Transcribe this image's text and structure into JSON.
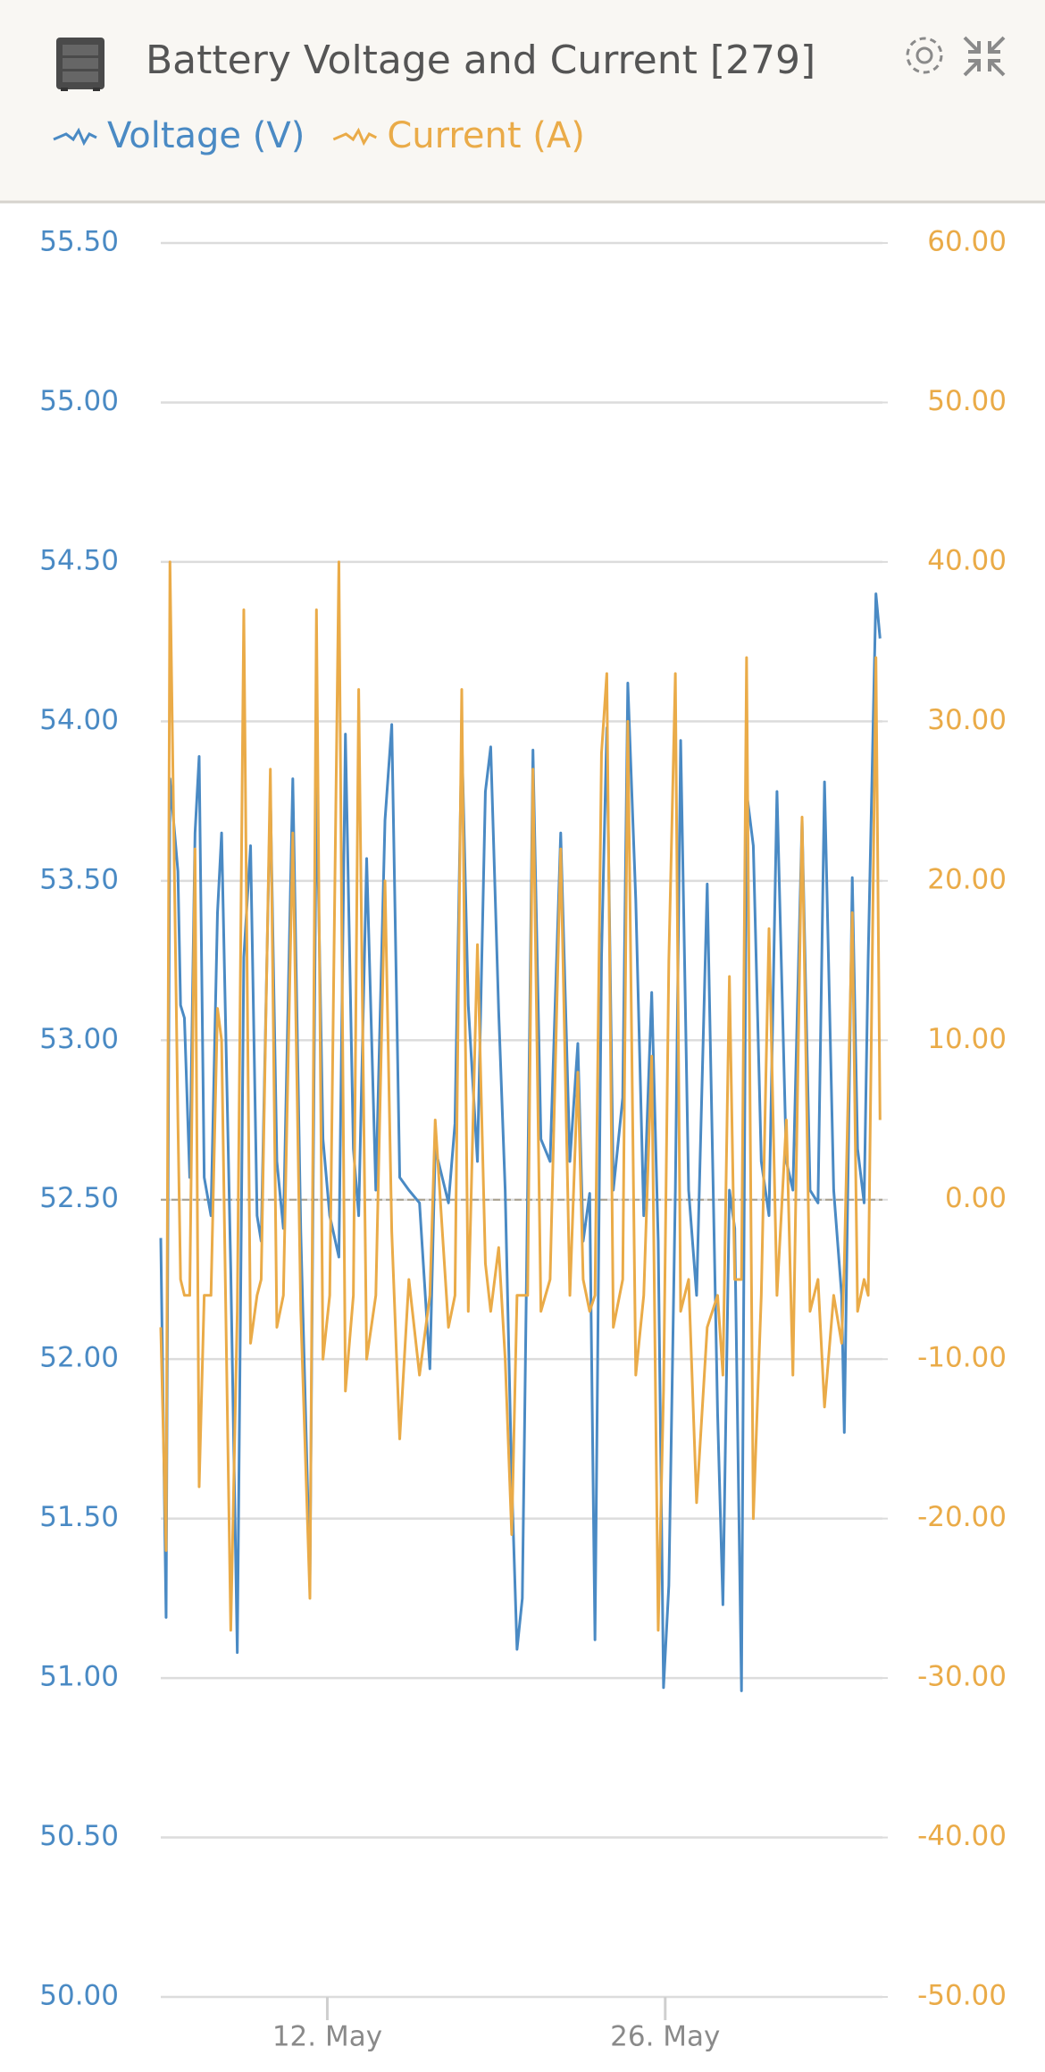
{
  "chart_data": {
    "type": "line",
    "title": "Battery Voltage and Current [279]",
    "x": [
      5.1,
      5.32,
      5.48,
      5.81,
      5.92,
      6.08,
      6.3,
      6.52,
      6.69,
      6.9,
      7.18,
      7.45,
      7.62,
      8.0,
      8.27,
      8.54,
      8.82,
      9.09,
      9.26,
      9.64,
      9.91,
      10.18,
      10.57,
      10.9,
      11.28,
      11.55,
      11.82,
      12.1,
      12.48,
      12.75,
      13.08,
      13.3,
      13.63,
      14.01,
      14.39,
      14.67,
      15.0,
      15.38,
      15.82,
      16.25,
      16.47,
      17.02,
      17.29,
      17.57,
      17.84,
      18.22,
      18.55,
      18.77,
      19.1,
      19.37,
      19.64,
      19.86,
      20.08,
      20.3,
      20.52,
      20.85,
      21.23,
      21.67,
      22.05,
      22.38,
      22.6,
      22.87,
      23.09,
      23.36,
      23.58,
      23.85,
      24.24,
      24.45,
      24.78,
      25.11,
      25.44,
      25.71,
      25.93,
      26.15,
      26.42,
      26.64,
      26.97,
      27.3,
      27.74,
      28.17,
      28.39,
      28.66,
      28.88,
      29.16,
      29.37,
      29.65,
      29.98,
      30.3,
      30.63,
      31.02,
      31.29,
      31.67,
      32.0,
      32.33,
      32.6,
      32.98,
      33.31,
      33.42,
      33.75,
      33.97,
      34.24,
      34.41,
      34.73,
      34.9
    ],
    "series": [
      {
        "name": "Voltage (V)",
        "color": "#4a8ac4",
        "axis": "y",
        "values": [
          52.38,
          51.19,
          53.82,
          53.53,
          53.11,
          53.07,
          52.57,
          53.65,
          53.89,
          52.57,
          52.45,
          53.4,
          53.65,
          52.28,
          51.08,
          53.26,
          53.61,
          52.45,
          52.37,
          53.78,
          52.62,
          52.41,
          53.82,
          52.4,
          51.31,
          53.82,
          52.69,
          52.45,
          52.32,
          53.96,
          52.66,
          52.45,
          53.57,
          52.53,
          53.69,
          53.99,
          52.57,
          52.53,
          52.49,
          51.97,
          52.66,
          52.49,
          52.74,
          53.96,
          53.11,
          52.62,
          53.78,
          53.92,
          53.09,
          52.53,
          51.62,
          51.09,
          51.25,
          52.53,
          53.91,
          52.69,
          52.62,
          53.65,
          52.62,
          52.99,
          52.37,
          52.52,
          51.12,
          53.26,
          53.98,
          52.53,
          52.82,
          54.12,
          53.44,
          52.45,
          53.15,
          52.37,
          50.97,
          51.29,
          52.53,
          53.94,
          52.53,
          52.2,
          53.49,
          51.83,
          51.23,
          52.53,
          52.41,
          50.96,
          53.78,
          53.61,
          52.62,
          52.45,
          53.78,
          52.62,
          52.53,
          53.69,
          52.53,
          52.49,
          53.81,
          52.53,
          52.2,
          51.77,
          53.51,
          52.66,
          52.49,
          53.26,
          54.4,
          54.26
        ]
      },
      {
        "name": "Current (A)",
        "color": "#eaab48",
        "axis": "y2",
        "values": [
          -8,
          -22,
          40,
          5,
          -5,
          -6,
          -6,
          22,
          -18,
          -6,
          -6,
          12,
          10,
          -27,
          -7,
          37,
          -9,
          -6,
          -5,
          27,
          -8,
          -6,
          23,
          -7,
          -25,
          37,
          -10,
          -6,
          40,
          -12,
          -6,
          32,
          -10,
          -6,
          20,
          -2,
          -15,
          -5,
          -11,
          -6,
          5,
          -8,
          -6,
          32,
          -7,
          16,
          -4,
          -7,
          -3,
          -10,
          -21,
          -6,
          -6,
          -6,
          27,
          -7,
          -5,
          22,
          -6,
          8,
          -5,
          -7,
          -6,
          28,
          33,
          -8,
          -5,
          30,
          -11,
          -6,
          9,
          -27,
          -12,
          15,
          33,
          -7,
          -5,
          -19,
          -8,
          -6,
          -11,
          14,
          -5,
          -5,
          34,
          -20,
          -6,
          17,
          -6,
          5,
          -11,
          24,
          -7,
          -5,
          -13,
          -6,
          -9,
          -4,
          18,
          -7,
          -5,
          -6,
          34,
          5
        ]
      }
    ],
    "xlim": [
      5.1,
      35.0
    ],
    "xticks": [
      {
        "value": 12,
        "label": "12. May"
      },
      {
        "value": 26,
        "label": "26. May"
      }
    ],
    "ylim": [
      50,
      55.5
    ],
    "yticks": [
      {
        "value": 50,
        "label": "50.00"
      },
      {
        "value": 50.5,
        "label": "50.50"
      },
      {
        "value": 51,
        "label": "51.00"
      },
      {
        "value": 51.5,
        "label": "51.50"
      },
      {
        "value": 52,
        "label": "52.00"
      },
      {
        "value": 52.5,
        "label": "52.50"
      },
      {
        "value": 53,
        "label": "53.00"
      },
      {
        "value": 53.5,
        "label": "53.50"
      },
      {
        "value": 54,
        "label": "54.00"
      },
      {
        "value": 54.5,
        "label": "54.50"
      },
      {
        "value": 55,
        "label": "55.00"
      },
      {
        "value": 55.5,
        "label": "55.50"
      }
    ],
    "y2lim": [
      -50,
      60
    ],
    "y2ticks": [
      {
        "value": -50,
        "label": "-50.00"
      },
      {
        "value": -40,
        "label": "-40.00"
      },
      {
        "value": -30,
        "label": "-30.00"
      },
      {
        "value": -20,
        "label": "-20.00"
      },
      {
        "value": -10,
        "label": "-10.00"
      },
      {
        "value": 0,
        "label": "0.00"
      },
      {
        "value": 10,
        "label": "10.00"
      },
      {
        "value": 20,
        "label": "20.00"
      },
      {
        "value": 30,
        "label": "30.00"
      },
      {
        "value": 40,
        "label": "40.00"
      },
      {
        "value": 50,
        "label": "50.00"
      },
      {
        "value": 60,
        "label": "60.00"
      }
    ],
    "grid": true
  }
}
